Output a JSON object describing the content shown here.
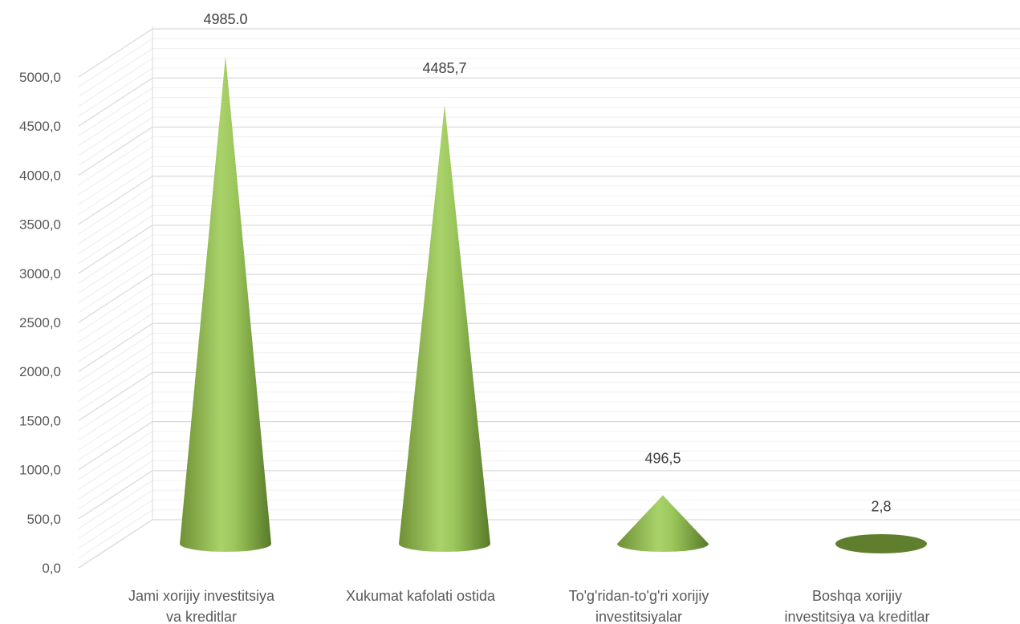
{
  "chart_data": {
    "type": "bar",
    "style": "3d-cone",
    "title": "",
    "xlabel": "",
    "ylabel": "",
    "categories": [
      [
        "Jami xorijiy investitsiya",
        "va kreditlar"
      ],
      [
        "Xukumat kafolati ostida"
      ],
      [
        "To'g'ridan-to'g'ri xorijiy",
        "investitsiyalar"
      ],
      [
        "Boshqa xorijiy",
        "investitsiya va kreditlar"
      ]
    ],
    "values": [
      4985.0,
      4485.7,
      496.5,
      2.8
    ],
    "data_labels": [
      "4985.0",
      "4485,7",
      "496,5",
      "2,8"
    ],
    "ylim": [
      0,
      5000
    ],
    "yticks": [
      "0,0",
      "500,0",
      "1000,0",
      "1500,0",
      "2000,0",
      "2500,0",
      "3000,0",
      "3500,0",
      "4000,0",
      "4500,0",
      "5000,0"
    ],
    "grid": true,
    "legend": "none",
    "colors": {
      "cone_light": "#a9d36a",
      "cone_mid": "#8cb84e",
      "cone_dark": "#5f7f2e",
      "grid": "#d9d9d9",
      "text": "#595959"
    }
  }
}
